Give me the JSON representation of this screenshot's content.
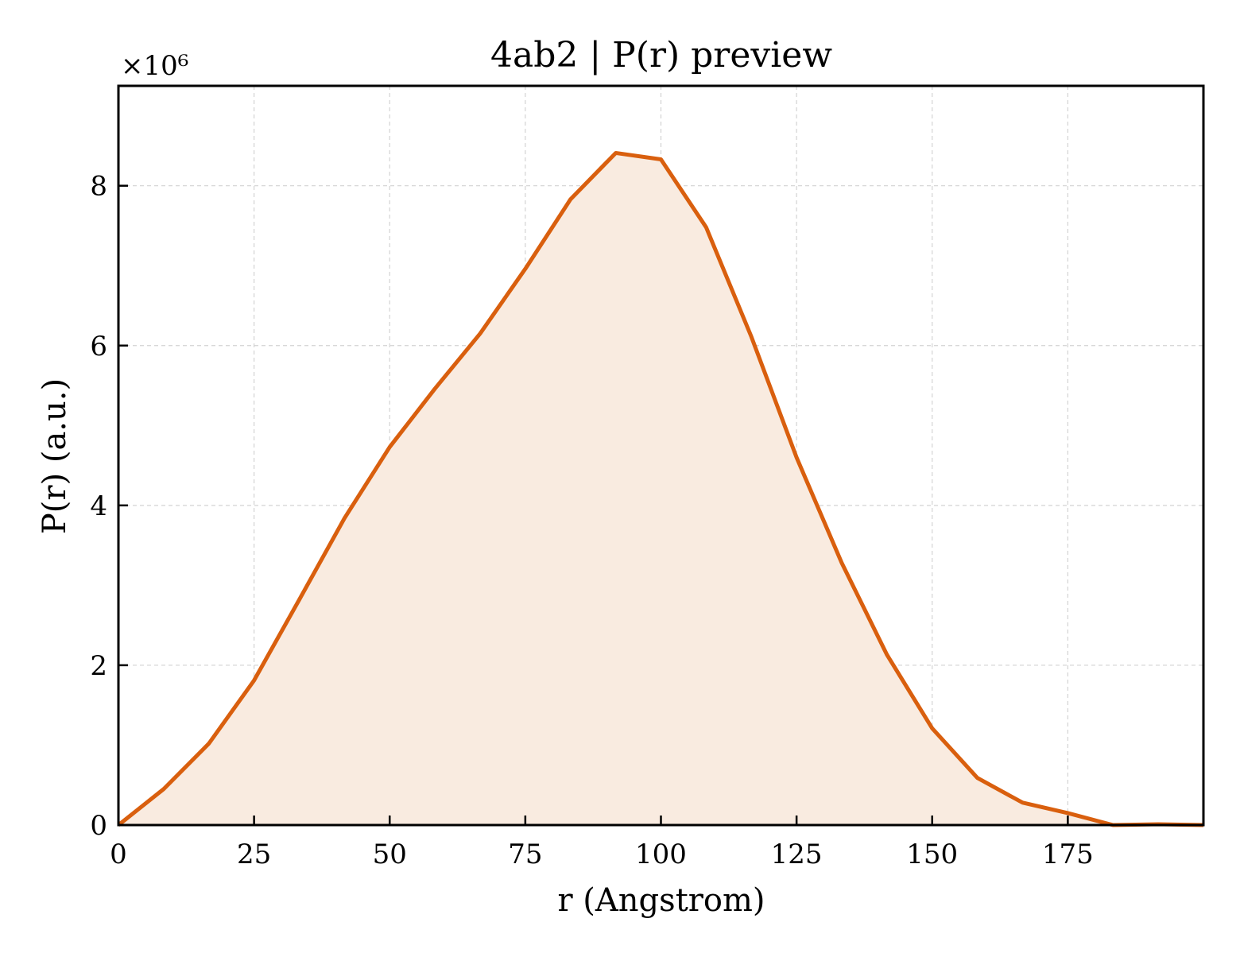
{
  "chart_data": {
    "type": "area",
    "title": "4ab2 | P(r) preview",
    "xlabel": "r (Angstrom)",
    "ylabel": "P(r) (a.u.)",
    "y_multiplier_label": "×10⁶",
    "y_scale": 1000000,
    "xlim": [
      0,
      200
    ],
    "ylim": [
      0,
      9250000
    ],
    "x_ticks": [
      0,
      25,
      50,
      75,
      100,
      125,
      150,
      175
    ],
    "x_tick_labels": [
      "0",
      "25",
      "50",
      "75",
      "100",
      "125",
      "150",
      "175"
    ],
    "y_ticks": [
      0,
      2000000,
      4000000,
      6000000,
      8000000
    ],
    "y_tick_labels": [
      "0",
      "2",
      "4",
      "6",
      "8"
    ],
    "grid": true,
    "line_color": "#d95f0e",
    "fill_color": "#f9ebe0",
    "x": [
      0,
      8.33,
      16.67,
      25,
      33.33,
      41.67,
      50,
      58.33,
      66.67,
      75,
      83.33,
      91.67,
      100,
      108.33,
      116.67,
      125,
      133.33,
      141.67,
      150,
      158.33,
      166.67,
      175,
      183.33,
      191.67,
      200
    ],
    "y": [
      0,
      450000,
      1020000,
      1810000,
      2820000,
      3840000,
      4730000,
      5460000,
      6150000,
      6960000,
      7830000,
      8410000,
      8330000,
      7480000,
      6110000,
      4600000,
      3280000,
      2130000,
      1210000,
      590000,
      280000,
      150000,
      0,
      10000,
      0
    ]
  }
}
